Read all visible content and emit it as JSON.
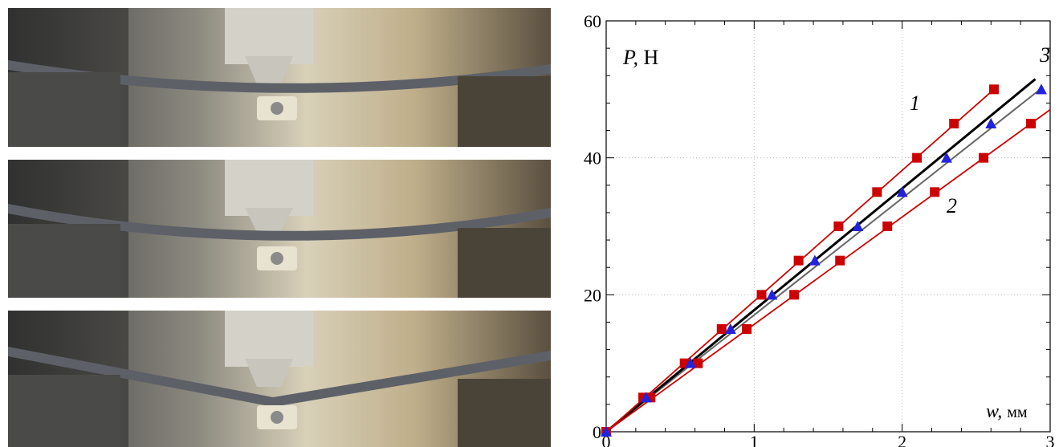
{
  "photos": [
    {
      "name": "bending-test-photo-1",
      "deflection": "small"
    },
    {
      "name": "bending-test-photo-2",
      "deflection": "medium"
    },
    {
      "name": "bending-test-photo-3",
      "deflection": "large-with-kink"
    }
  ],
  "chart_data": {
    "type": "line",
    "ylabel_var": "P,",
    "ylabel_unit": "Н",
    "xlabel_var": "w,",
    "xlabel_unit": "мм",
    "xlim": [
      0,
      3
    ],
    "ylim": [
      0,
      60
    ],
    "xticks": [
      0,
      1,
      2,
      3
    ],
    "yticks": [
      0,
      20,
      40,
      60
    ],
    "grid": true,
    "series": [
      {
        "name": "1",
        "color": "#cc0000",
        "marker": "square",
        "x": [
          0,
          0.25,
          0.53,
          0.78,
          1.05,
          1.3,
          1.57,
          1.83,
          2.1,
          2.35,
          2.62
        ],
        "y": [
          0,
          5,
          10,
          15,
          20,
          25,
          30,
          35,
          40,
          45,
          50
        ]
      },
      {
        "name": "2",
        "color": "#cc0000",
        "marker": "square",
        "x": [
          0,
          0.3,
          0.62,
          0.95,
          1.27,
          1.58,
          1.9,
          2.22,
          2.55,
          2.87
        ],
        "y": [
          0,
          5,
          10,
          15,
          20,
          25,
          30,
          35,
          40,
          45
        ]
      },
      {
        "name": "3",
        "color": "#2222dd",
        "marker": "triangle",
        "x": [
          0,
          0.27,
          0.57,
          0.84,
          1.12,
          1.41,
          1.7,
          2.0,
          2.3,
          2.6,
          2.94
        ],
        "y": [
          0,
          5,
          10,
          15,
          20,
          25,
          30,
          35,
          40,
          45,
          50
        ]
      }
    ],
    "fit_line": {
      "color": "#000000",
      "x": [
        0,
        2.9
      ],
      "y": [
        0,
        51.5
      ]
    },
    "fit_line_grey": {
      "color": "#666666",
      "x": [
        0,
        2.95
      ],
      "y": [
        0,
        50.3
      ]
    },
    "curve_labels": [
      {
        "text": "1",
        "x": 2.05,
        "y": 47
      },
      {
        "text": "2",
        "x": 2.3,
        "y": 32
      },
      {
        "text": "3",
        "x": 2.93,
        "y": 54
      }
    ]
  }
}
